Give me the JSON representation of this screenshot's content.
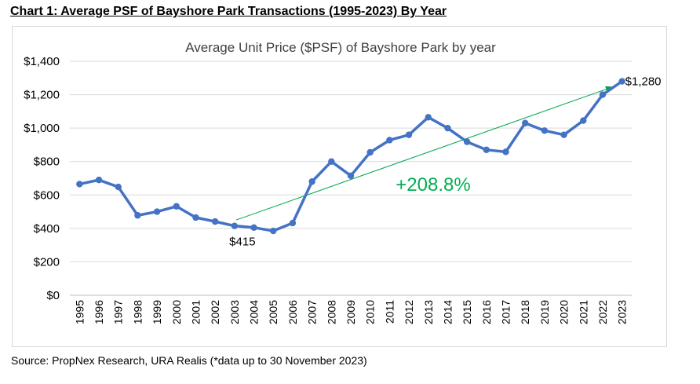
{
  "heading": "Chart 1: Average PSF of Bayshore Park Transactions (1995-2023) By Year",
  "source": "Source: PropNex Research, URA Realis (*data up to 30 November 2023)",
  "chart_data": {
    "type": "line",
    "title": "Average Unit Price ($PSF) of Bayshore Park by year",
    "xlabel": "",
    "ylabel": "",
    "x": [
      "1995",
      "1996",
      "1997",
      "1998",
      "1999",
      "2000",
      "2001",
      "2002",
      "2003",
      "2004",
      "2005",
      "2006",
      "2007",
      "2008",
      "2009",
      "2010",
      "2011",
      "2012",
      "2013",
      "2014",
      "2015",
      "2016",
      "2017",
      "2018",
      "2019",
      "2020",
      "2021",
      "2022",
      "2023"
    ],
    "series": [
      {
        "values": [
          665,
          690,
          648,
          478,
          500,
          532,
          465,
          441,
          415,
          405,
          385,
          432,
          680,
          800,
          715,
          855,
          928,
          960,
          1065,
          1000,
          918,
          870,
          858,
          1030,
          985,
          960,
          1045,
          1200,
          1280
        ],
        "color": "#4472c4"
      }
    ],
    "ylim": [
      0,
      1400
    ],
    "yticks": [
      0,
      200,
      400,
      600,
      800,
      1000,
      1200,
      1400
    ],
    "ytick_labels": [
      "$0",
      "$200",
      "$400",
      "$600",
      "$800",
      "$1,000",
      "$1,200",
      "$1,400"
    ],
    "grid": true,
    "legend": "none",
    "annotations": {
      "start_label": "$415",
      "end_label": "$1,280",
      "change_label": "+208.8%",
      "trend_from": {
        "x": "2003",
        "y": 450
      },
      "trend_to": {
        "x": "2022",
        "y": 1245
      },
      "trend_color": "#00a651",
      "change_color": "#00b050"
    }
  }
}
